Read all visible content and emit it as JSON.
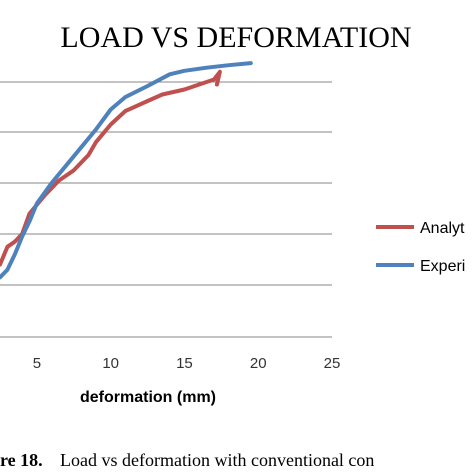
{
  "chart_data": {
    "type": "line",
    "title": "LOAD VS DEFORMATION",
    "xlabel": "deformation (mm)",
    "ylabel": "",
    "xlim": [
      2.5,
      25
    ],
    "x_ticks": [
      "5",
      "10",
      "15",
      "20",
      "25"
    ],
    "x_tick_values": [
      5,
      10,
      15,
      20,
      25
    ],
    "gridlines_y": [
      1,
      2,
      3,
      4,
      5
    ],
    "ylim": [
      0.5,
      6
    ],
    "grid": true,
    "legend_position": "right",
    "series": [
      {
        "name": "Analyt",
        "color": "#c0504d",
        "x": [
          2.5,
          3.0,
          3.5,
          4.0,
          4.5,
          5.5,
          6.5,
          7.5,
          8.5,
          9.0,
          10.0,
          11.0,
          12.5,
          13.5,
          15.0,
          16.0,
          17.0,
          17.4,
          17.2
        ],
        "y": [
          1.4,
          1.75,
          1.85,
          2.0,
          2.4,
          2.75,
          3.05,
          3.25,
          3.55,
          3.8,
          4.15,
          4.42,
          4.62,
          4.75,
          4.85,
          4.95,
          5.05,
          5.2,
          4.95
        ]
      },
      {
        "name": "Experi",
        "color": "#4f81bd",
        "x": [
          2.5,
          3.0,
          3.5,
          4.0,
          4.5,
          5.0,
          6.0,
          7.0,
          8.0,
          9.0,
          10.0,
          11.0,
          12.5,
          14.0,
          15.0,
          16.5,
          18.0,
          19.5
        ],
        "y": [
          1.15,
          1.3,
          1.6,
          1.95,
          2.25,
          2.6,
          3.0,
          3.35,
          3.7,
          4.05,
          4.45,
          4.7,
          4.92,
          5.15,
          5.22,
          5.28,
          5.33,
          5.37
        ]
      }
    ]
  },
  "caption": {
    "label": "re 18.",
    "text": "Load vs deformation with conventional con"
  }
}
